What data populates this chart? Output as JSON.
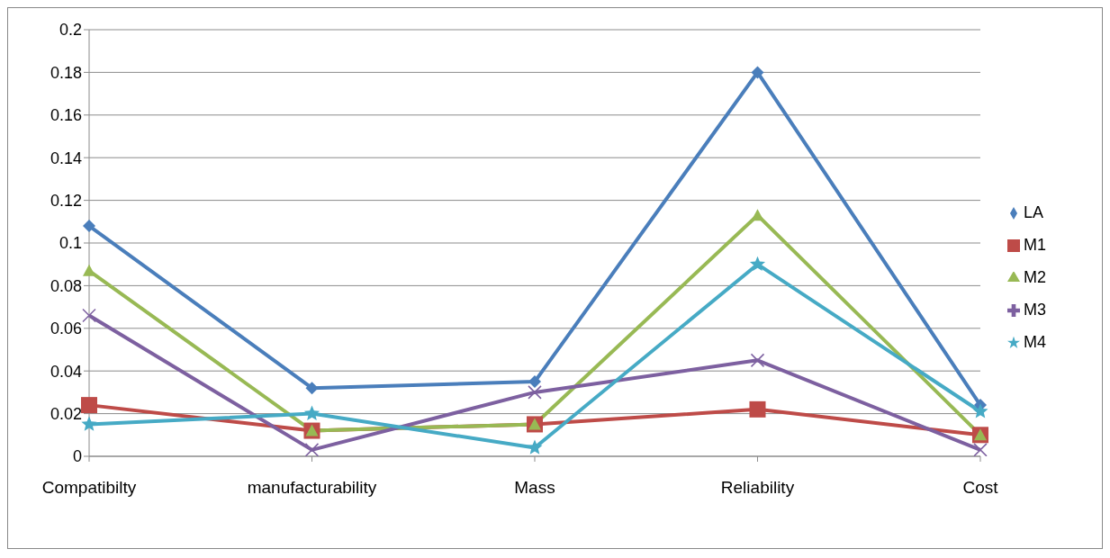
{
  "chart_data": {
    "type": "line",
    "categories": [
      "Compatibilty",
      "manufacturability",
      "Mass",
      "Reliability",
      "Cost"
    ],
    "series": [
      {
        "name": "LA",
        "color": "#4a7ebb",
        "marker": "diamond",
        "values": [
          0.108,
          0.032,
          0.035,
          0.18,
          0.024
        ]
      },
      {
        "name": "M1",
        "color": "#be4b48",
        "marker": "square",
        "values": [
          0.024,
          0.012,
          0.015,
          0.022,
          0.01
        ]
      },
      {
        "name": "M2",
        "color": "#98b954",
        "marker": "triangle",
        "values": [
          0.087,
          0.012,
          0.015,
          0.113,
          0.01
        ]
      },
      {
        "name": "M3",
        "color": "#7d60a0",
        "marker": "cross",
        "values": [
          0.066,
          0.003,
          0.03,
          0.045,
          0.003
        ]
      },
      {
        "name": "M4",
        "color": "#46aac5",
        "marker": "star",
        "values": [
          0.015,
          0.02,
          0.004,
          0.09,
          0.021
        ]
      }
    ],
    "ylim": [
      0,
      0.2
    ],
    "yticks": [
      0,
      0.02,
      0.04,
      0.06,
      0.08,
      0.1,
      0.12,
      0.14,
      0.16,
      0.18,
      0.2
    ],
    "grid": "y",
    "legend": "right",
    "line_style": "solid"
  }
}
